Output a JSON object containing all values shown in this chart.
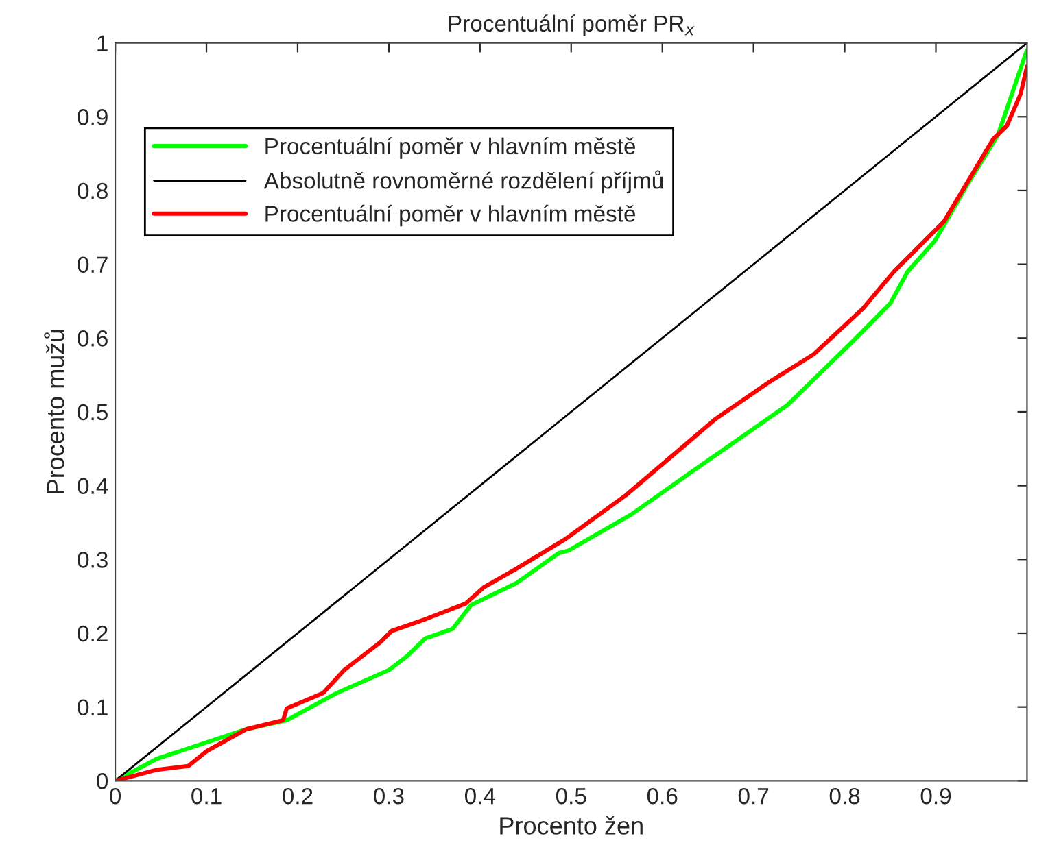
{
  "chart_data": {
    "type": "line",
    "title": "Procentuální poměr PR$_{x}$",
    "xlabel": "Procento žen",
    "ylabel": "Procento mužů",
    "xlim": [
      0,
      1
    ],
    "ylim": [
      0,
      1
    ],
    "xticks": [
      0,
      0.1,
      0.2,
      0.3,
      0.4,
      0.5,
      0.6,
      0.7,
      0.8,
      0.9
    ],
    "yticks": [
      0,
      0.1,
      0.2,
      0.3,
      0.4,
      0.5,
      0.6,
      0.7,
      0.8,
      0.9,
      1
    ],
    "grid": false,
    "legend": "top left",
    "marker": "none",
    "line_style": "solid",
    "series": [
      {
        "name": "Procentuální poměr v hlavním městě",
        "color": "#00ff00",
        "x": [
          0,
          0.046,
          0.1,
          0.144,
          0.188,
          0.243,
          0.3,
          0.32,
          0.34,
          0.37,
          0.39,
          0.44,
          0.487,
          0.497,
          0.566,
          0.644,
          0.737,
          0.81,
          0.85,
          0.869,
          0.899,
          0.934,
          0.968,
          0.997,
          1
        ],
        "values": [
          0,
          0.03,
          0.052,
          0.07,
          0.082,
          0.119,
          0.15,
          0.169,
          0.193,
          0.206,
          0.238,
          0.268,
          0.309,
          0.312,
          0.361,
          0.429,
          0.509,
          0.597,
          0.647,
          0.69,
          0.732,
          0.807,
          0.875,
          0.98,
          0.99
        ]
      },
      {
        "name": "Absolutně rovnoměrné rozdělení příjmů",
        "color": "#000000",
        "x": [
          0,
          1
        ],
        "values": [
          0,
          1
        ]
      },
      {
        "name": "Procentuální poměr v hlavním městě",
        "color": "#ff0000",
        "x": [
          0,
          0.046,
          0.08,
          0.1,
          0.144,
          0.184,
          0.188,
          0.228,
          0.251,
          0.291,
          0.303,
          0.34,
          0.384,
          0.404,
          0.438,
          0.493,
          0.56,
          0.659,
          0.718,
          0.766,
          0.82,
          0.854,
          0.909,
          0.963,
          0.978,
          0.993,
          1
        ],
        "values": [
          0,
          0.015,
          0.02,
          0.04,
          0.07,
          0.082,
          0.098,
          0.119,
          0.15,
          0.188,
          0.203,
          0.219,
          0.24,
          0.262,
          0.286,
          0.327,
          0.387,
          0.491,
          0.541,
          0.578,
          0.64,
          0.69,
          0.758,
          0.87,
          0.888,
          0.931,
          0.968
        ]
      }
    ]
  }
}
